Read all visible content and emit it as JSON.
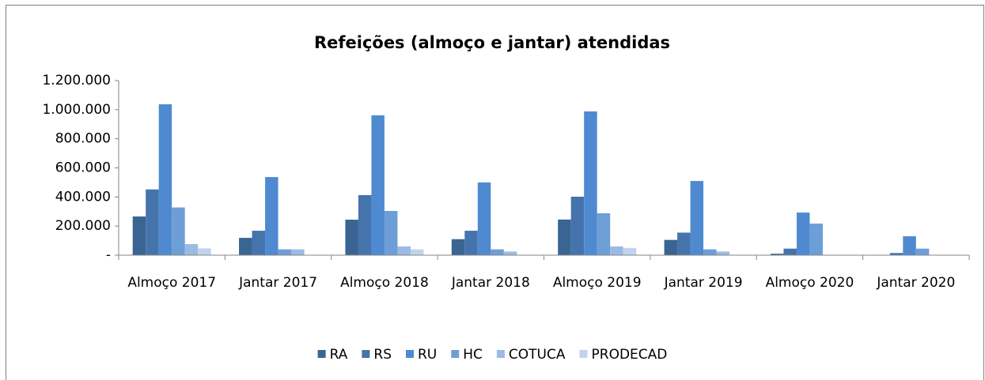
{
  "chart_data": {
    "type": "bar",
    "title": "Refeições (almoço  e jantar) atendidas",
    "categories": [
      "Almoço 2017",
      "Jantar 2017",
      "Almoço 2018",
      "Jantar 2018",
      "Almoço 2019",
      "Jantar 2019",
      "Almoço 2020",
      "Jantar 2020"
    ],
    "series": [
      {
        "name": "RA",
        "color": "#3a6593",
        "values": [
          266000,
          119000,
          244000,
          110000,
          245000,
          105000,
          10000,
          0
        ]
      },
      {
        "name": "RS",
        "color": "#4574ad",
        "values": [
          452000,
          168000,
          413000,
          168000,
          402000,
          155000,
          45000,
          15000
        ]
      },
      {
        "name": "RU",
        "color": "#4f8ad1",
        "values": [
          1037000,
          537000,
          961000,
          500000,
          988000,
          510000,
          293000,
          130000
        ]
      },
      {
        "name": "HC",
        "color": "#6d9ed8",
        "values": [
          328000,
          40000,
          304000,
          40000,
          288000,
          40000,
          217000,
          45000
        ]
      },
      {
        "name": "COTUCA",
        "color": "#9bbbe3",
        "values": [
          76000,
          40000,
          60000,
          25000,
          60000,
          25000,
          0,
          0
        ]
      },
      {
        "name": "PRODECAD",
        "color": "#c0d3ee",
        "values": [
          47000,
          0,
          40000,
          0,
          50000,
          0,
          0,
          0
        ]
      }
    ],
    "ylim": [
      0,
      1200000
    ],
    "yticks": [
      {
        "value": 0,
        "label": "-"
      },
      {
        "value": 200000,
        "label": "200.000"
      },
      {
        "value": 400000,
        "label": "400.000"
      },
      {
        "value": 600000,
        "label": "600.000"
      },
      {
        "value": 800000,
        "label": "800.000"
      },
      {
        "value": 1000000,
        "label": "1.000.000"
      },
      {
        "value": 1200000,
        "label": "1.200.000"
      }
    ],
    "legend": "bottom"
  }
}
